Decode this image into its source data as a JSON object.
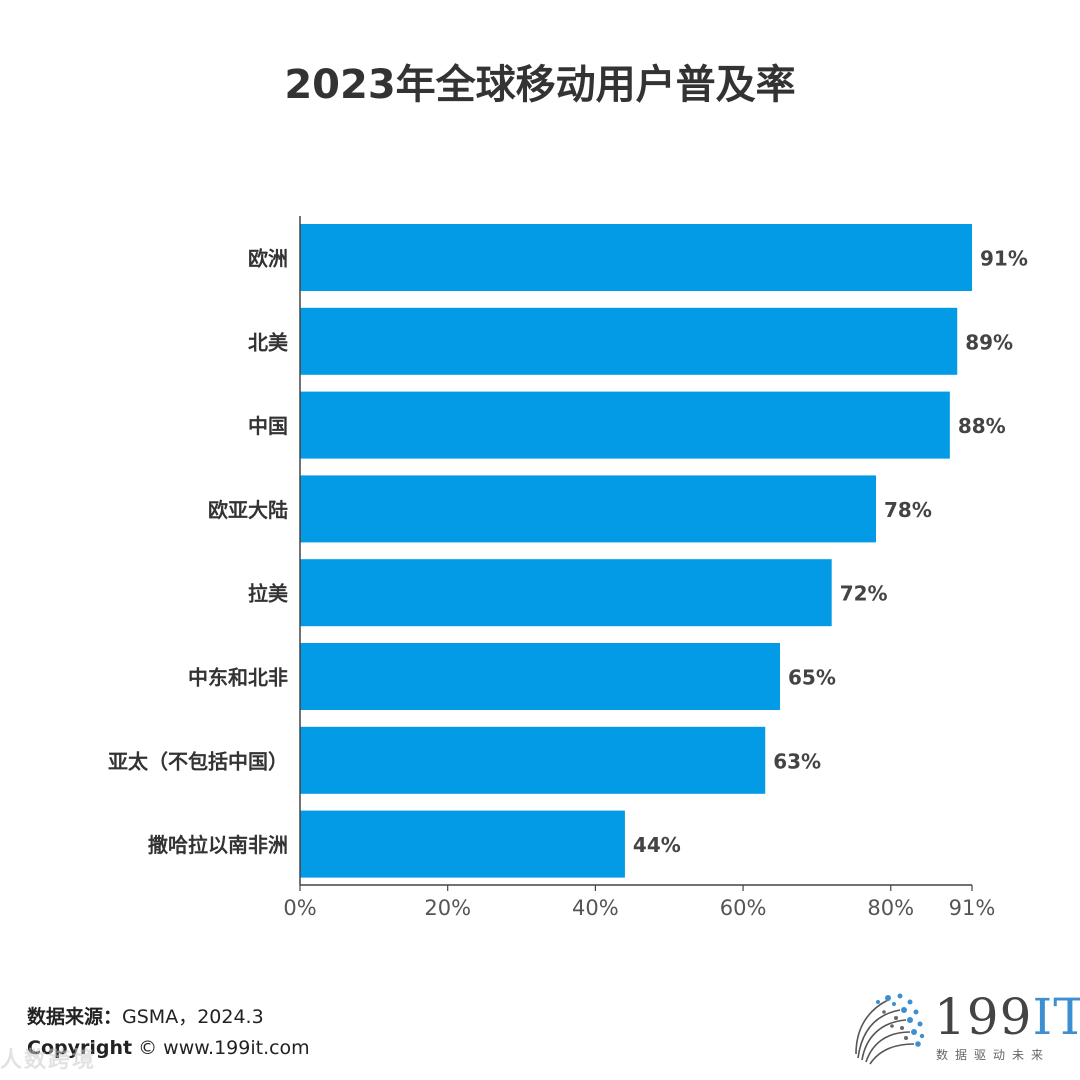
{
  "title": "2023年全球移动用户普及率",
  "chart_data": {
    "type": "bar",
    "orientation": "horizontal",
    "title": "2023年全球移动用户普及率",
    "categories": [
      "欧洲",
      "北美",
      "中国",
      "欧亚大陆",
      "拉美",
      "中东和北非",
      "亚太（不包括中国）",
      "撒哈拉以南非洲"
    ],
    "values": [
      91,
      89,
      88,
      78,
      72,
      65,
      63,
      44
    ],
    "value_labels": [
      "91%",
      "89%",
      "88%",
      "78%",
      "72%",
      "65%",
      "63%",
      "44%"
    ],
    "xlim": [
      0,
      91
    ],
    "xticks": [
      0,
      20,
      40,
      60,
      80,
      91
    ],
    "xtick_labels": [
      "0%",
      "20%",
      "40%",
      "60%",
      "80%",
      "91%"
    ],
    "xlabel": "",
    "ylabel": "",
    "bar_color": "#039be5",
    "grid": false
  },
  "footer": {
    "source_label": "数据来源：",
    "source_value": "GSMA，2024.3",
    "copyright_label": "Copyright",
    "copyright_value": "© www.199it.com",
    "watermark": "人数跨境"
  },
  "logo": {
    "name": "199",
    "name_accent": "IT",
    "tagline": "数据驱动未来",
    "accent_color": "#3d8fd1"
  }
}
